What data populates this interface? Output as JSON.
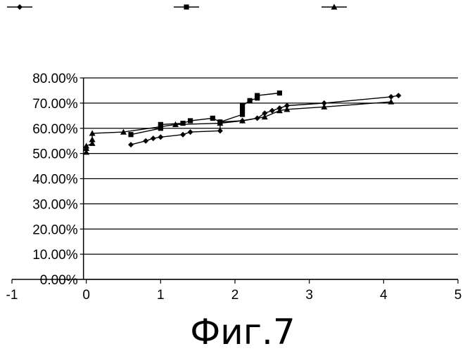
{
  "chart_data": {
    "type": "scatter",
    "title": "",
    "xlabel": "",
    "ylabel": "",
    "xlim": [
      -1,
      5
    ],
    "ylim": [
      0,
      0.8
    ],
    "x_ticks": [
      -1,
      0,
      1,
      2,
      3,
      4,
      5
    ],
    "x_tick_labels": [
      "-1",
      "0",
      "1",
      "2",
      "3",
      "4",
      "5"
    ],
    "y_ticks": [
      0,
      0.1,
      0.2,
      0.3,
      0.4,
      0.5,
      0.6,
      0.7,
      0.8
    ],
    "y_tick_labels": [
      "0.00%",
      "10.00%",
      "20.00%",
      "30.00%",
      "40.00%",
      "50.00%",
      "60.00%",
      "70.00%",
      "80.00%"
    ],
    "grid": "horizontal",
    "legend_position": "top",
    "caption": "Фиг.7",
    "series": [
      {
        "marker": "diamond",
        "color": "#000000",
        "x": [
          0.6,
          0.8,
          0.9,
          1.0,
          1.3,
          1.4,
          1.8,
          1.8,
          2.1,
          2.3,
          2.4,
          2.5,
          2.6,
          2.7,
          3.2,
          4.1,
          4.2
        ],
        "y": [
          0.535,
          0.55,
          0.56,
          0.565,
          0.575,
          0.585,
          0.59,
          0.625,
          0.63,
          0.64,
          0.66,
          0.67,
          0.68,
          0.69,
          0.7,
          0.725,
          0.73
        ]
      },
      {
        "marker": "square",
        "color": "#000000",
        "x": [
          0.6,
          1.0,
          1.0,
          1.3,
          1.4,
          1.7,
          1.8,
          2.1,
          2.1,
          2.1,
          2.2,
          2.3,
          2.3,
          2.6
        ],
        "y": [
          0.575,
          0.6,
          0.615,
          0.62,
          0.63,
          0.64,
          0.625,
          0.655,
          0.675,
          0.69,
          0.71,
          0.72,
          0.73,
          0.74
        ]
      },
      {
        "marker": "triangle",
        "color": "#000000",
        "x": [
          0.0,
          0.0,
          0.0,
          0.08,
          0.08,
          0.08,
          0.5,
          1.2,
          1.8,
          2.1,
          2.4,
          2.6,
          2.7,
          3.2,
          4.1
        ],
        "y": [
          0.505,
          0.52,
          0.53,
          0.54,
          0.555,
          0.58,
          0.585,
          0.615,
          0.62,
          0.63,
          0.645,
          0.67,
          0.675,
          0.685,
          0.705
        ]
      }
    ]
  }
}
